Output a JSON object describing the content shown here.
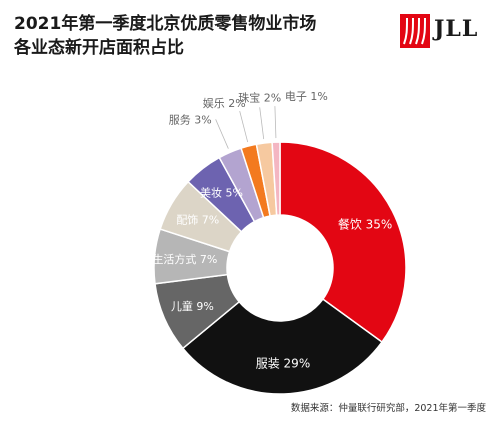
{
  "header": {
    "title_line1": "2021年第一季度北京优质零售物业市场",
    "title_line2": "各业态新开店面积占比"
  },
  "logo": {
    "text": "JLL",
    "color": "#e30613"
  },
  "source": "数据来源：仲量联行研究部，2021年第一季度",
  "chart_data": {
    "type": "pie",
    "variant": "donut",
    "title": "2021年第一季度北京优质零售物业市场各业态新开店面积占比",
    "unit": "%",
    "slices": [
      {
        "name": "餐饮",
        "value": 35,
        "color": "#e30613"
      },
      {
        "name": "服装",
        "value": 29,
        "color": "#111111"
      },
      {
        "name": "儿童",
        "value": 9,
        "color": "#666666"
      },
      {
        "name": "生活方式",
        "value": 7,
        "color": "#b6b6b6"
      },
      {
        "name": "配饰",
        "value": 7,
        "color": "#dcd5c7"
      },
      {
        "name": "美妆",
        "value": 5,
        "color": "#6d63b0"
      },
      {
        "name": "服务",
        "value": 3,
        "color": "#b3a4d0"
      },
      {
        "name": "娱乐",
        "value": 2,
        "color": "#f37a1f"
      },
      {
        "name": "珠宝",
        "value": 2,
        "color": "#f6c9a0"
      },
      {
        "name": "电子",
        "value": 1,
        "color": "#f4b6c2"
      }
    ]
  }
}
